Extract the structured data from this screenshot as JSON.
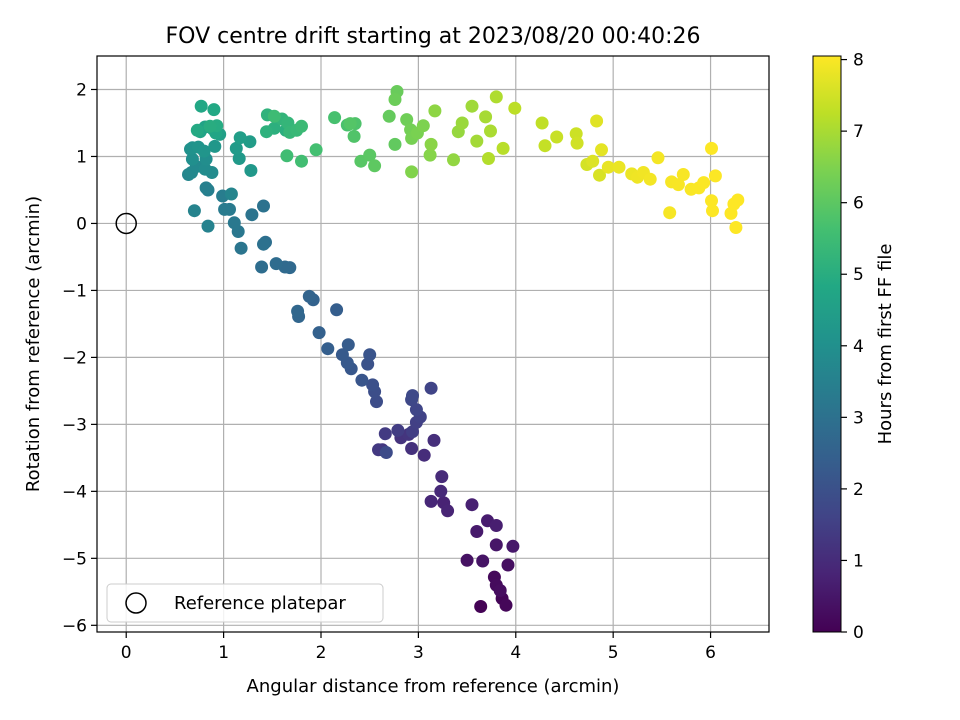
{
  "chart_data": {
    "type": "scatter",
    "title": "FOV centre drift starting at 2023/08/20 00:40:26",
    "xlabel": "Angular distance from reference (arcmin)",
    "ylabel": "Rotation from reference (arcmin)",
    "xlim": [
      -0.3,
      6.6
    ],
    "ylim": [
      -6.1,
      2.5
    ],
    "xticks": [
      0,
      1,
      2,
      3,
      4,
      5,
      6
    ],
    "yticks": [
      -6,
      -5,
      -4,
      -3,
      -2,
      -1,
      0,
      1,
      2
    ],
    "grid": true,
    "colormap": "viridis",
    "colorbar": {
      "label": "Hours from first FF file",
      "min": 0,
      "max": 8.05,
      "ticks": [
        0,
        1,
        2,
        3,
        4,
        5,
        6,
        7,
        8
      ]
    },
    "legend": {
      "position": "lower-left",
      "entries": [
        "Reference platepar"
      ]
    },
    "reference_point": {
      "x": 0,
      "y": 0
    },
    "points": [
      [
        3.64,
        -5.72,
        0.03
      ],
      [
        3.86,
        -5.6,
        0.08
      ],
      [
        3.9,
        -5.7,
        0.13
      ],
      [
        3.78,
        -5.28,
        0.18
      ],
      [
        3.8,
        -5.4,
        0.23
      ],
      [
        3.84,
        -5.48,
        0.28
      ],
      [
        3.92,
        -5.1,
        0.33
      ],
      [
        3.5,
        -5.03,
        0.38
      ],
      [
        3.66,
        -5.04,
        0.43
      ],
      [
        3.8,
        -4.8,
        0.48
      ],
      [
        3.97,
        -4.82,
        0.53
      ],
      [
        3.6,
        -4.6,
        0.58
      ],
      [
        3.71,
        -4.44,
        0.63
      ],
      [
        3.8,
        -4.51,
        0.68
      ],
      [
        3.55,
        -4.2,
        0.73
      ],
      [
        3.26,
        -4.17,
        0.78
      ],
      [
        3.3,
        -4.29,
        0.83
      ],
      [
        3.13,
        -4.15,
        0.88
      ],
      [
        3.23,
        -4.0,
        0.93
      ],
      [
        3.24,
        -3.78,
        0.98
      ],
      [
        3.06,
        -3.46,
        1.03
      ],
      [
        3.16,
        -3.24,
        1.08
      ],
      [
        2.93,
        -3.36,
        1.13
      ],
      [
        2.82,
        -3.2,
        1.18
      ],
      [
        2.9,
        -3.15,
        1.23
      ],
      [
        2.63,
        -3.38,
        1.28
      ],
      [
        2.59,
        -3.38,
        1.33
      ],
      [
        2.66,
        -3.14,
        1.38
      ],
      [
        2.79,
        -3.09,
        1.43
      ],
      [
        2.94,
        -3.11,
        1.48
      ],
      [
        2.98,
        -2.97,
        1.53
      ],
      [
        3.02,
        -2.89,
        1.58
      ],
      [
        3.13,
        -2.46,
        1.63
      ],
      [
        2.98,
        -2.78,
        1.68
      ],
      [
        2.93,
        -2.63,
        1.73
      ],
      [
        2.94,
        -2.57,
        1.78
      ],
      [
        2.67,
        -3.42,
        1.83
      ],
      [
        2.57,
        -2.66,
        1.88
      ],
      [
        2.55,
        -2.51,
        1.93
      ],
      [
        2.53,
        -2.41,
        1.98
      ],
      [
        2.48,
        -2.1,
        2.03
      ],
      [
        2.5,
        -1.96,
        2.08
      ],
      [
        2.42,
        -2.34,
        2.13
      ],
      [
        2.31,
        -2.17,
        2.18
      ],
      [
        2.27,
        -2.08,
        2.23
      ],
      [
        2.22,
        -1.96,
        2.28
      ],
      [
        2.28,
        -1.81,
        2.33
      ],
      [
        2.16,
        -1.29,
        2.38
      ],
      [
        2.07,
        -1.87,
        2.43
      ],
      [
        1.98,
        -1.63,
        2.48
      ],
      [
        1.92,
        -1.14,
        2.53
      ],
      [
        1.88,
        -1.09,
        2.58
      ],
      [
        1.77,
        -1.39,
        2.63
      ],
      [
        1.76,
        -1.31,
        2.68
      ],
      [
        1.68,
        -0.66,
        2.73
      ],
      [
        1.63,
        -0.65,
        2.78
      ],
      [
        1.54,
        -0.6,
        2.83
      ],
      [
        1.39,
        -0.65,
        2.88
      ],
      [
        1.43,
        -0.28,
        2.93
      ],
      [
        1.41,
        -0.31,
        2.98
      ],
      [
        1.41,
        0.26,
        3.03
      ],
      [
        1.29,
        0.13,
        3.08
      ],
      [
        1.18,
        -0.37,
        3.13
      ],
      [
        1.15,
        -0.12,
        3.18
      ],
      [
        1.11,
        0.01,
        3.23
      ],
      [
        1.06,
        0.21,
        3.28
      ],
      [
        1.01,
        0.21,
        3.33
      ],
      [
        0.99,
        0.41,
        3.38
      ],
      [
        0.84,
        0.5,
        3.43
      ],
      [
        0.82,
        0.53,
        3.48
      ],
      [
        0.84,
        -0.04,
        3.53
      ],
      [
        0.7,
        0.19,
        3.58
      ],
      [
        1.08,
        0.44,
        3.63
      ],
      [
        0.64,
        0.73,
        3.68
      ],
      [
        0.67,
        0.76,
        3.73
      ],
      [
        0.72,
        0.85,
        3.78
      ],
      [
        0.88,
        0.76,
        3.83
      ],
      [
        0.81,
        0.81,
        3.88
      ],
      [
        0.82,
        0.96,
        3.93
      ],
      [
        0.68,
        0.96,
        3.98
      ],
      [
        0.66,
        1.11,
        4.03
      ],
      [
        0.68,
        1.13,
        4.08
      ],
      [
        0.74,
        1.14,
        4.13
      ],
      [
        0.8,
        1.08,
        4.18
      ],
      [
        0.91,
        1.15,
        4.23
      ],
      [
        1.28,
        0.79,
        4.28
      ],
      [
        1.16,
        0.97,
        4.33
      ],
      [
        1.13,
        1.12,
        4.38
      ],
      [
        1.27,
        1.22,
        4.43
      ],
      [
        1.17,
        1.28,
        4.48
      ],
      [
        0.96,
        1.33,
        4.53
      ],
      [
        0.89,
        1.41,
        4.58
      ],
      [
        0.81,
        1.44,
        4.63
      ],
      [
        0.76,
        1.37,
        4.68
      ],
      [
        0.92,
        1.35,
        4.73
      ],
      [
        0.77,
        1.75,
        4.78
      ],
      [
        0.9,
        1.7,
        4.83
      ],
      [
        0.73,
        1.39,
        4.88
      ],
      [
        0.93,
        1.46,
        4.93
      ],
      [
        0.86,
        1.45,
        4.98
      ],
      [
        1.64,
        1.39,
        5.03
      ],
      [
        1.52,
        1.42,
        5.08
      ],
      [
        1.44,
        1.37,
        5.13
      ],
      [
        1.45,
        1.62,
        5.18
      ],
      [
        1.6,
        1.56,
        5.23
      ],
      [
        1.66,
        1.5,
        5.28
      ],
      [
        1.68,
        1.36,
        5.33
      ],
      [
        1.75,
        1.39,
        5.38
      ],
      [
        1.8,
        1.45,
        5.43
      ],
      [
        1.52,
        1.6,
        5.48
      ],
      [
        1.65,
        1.01,
        5.53
      ],
      [
        1.8,
        0.93,
        5.58
      ],
      [
        1.95,
        1.1,
        5.63
      ],
      [
        2.14,
        1.58,
        5.68
      ],
      [
        2.27,
        1.47,
        5.73
      ],
      [
        2.35,
        1.49,
        5.78
      ],
      [
        2.34,
        1.3,
        5.83
      ],
      [
        2.3,
        1.49,
        5.88
      ],
      [
        2.41,
        0.93,
        5.93
      ],
      [
        2.5,
        1.02,
        5.98
      ],
      [
        2.55,
        0.86,
        6.03
      ],
      [
        2.76,
        1.18,
        6.08
      ],
      [
        2.7,
        1.6,
        6.13
      ],
      [
        2.78,
        1.97,
        6.18
      ],
      [
        2.76,
        1.85,
        6.23
      ],
      [
        2.88,
        1.55,
        6.28
      ],
      [
        2.92,
        1.4,
        6.33
      ],
      [
        2.93,
        1.27,
        6.38
      ],
      [
        2.99,
        1.35,
        6.43
      ],
      [
        3.05,
        1.46,
        6.48
      ],
      [
        2.93,
        0.77,
        6.53
      ],
      [
        3.12,
        1.02,
        6.58
      ],
      [
        3.13,
        1.18,
        6.63
      ],
      [
        3.17,
        1.68,
        6.68
      ],
      [
        3.36,
        0.95,
        6.73
      ],
      [
        3.41,
        1.37,
        6.78
      ],
      [
        3.45,
        1.5,
        6.83
      ],
      [
        3.55,
        1.75,
        6.88
      ],
      [
        3.6,
        1.23,
        6.93
      ],
      [
        3.69,
        1.59,
        6.98
      ],
      [
        3.74,
        1.38,
        7.03
      ],
      [
        3.8,
        1.89,
        7.08
      ],
      [
        3.72,
        0.97,
        7.13
      ],
      [
        3.87,
        1.12,
        7.18
      ],
      [
        3.99,
        1.72,
        7.23
      ],
      [
        4.27,
        1.5,
        7.28
      ],
      [
        4.3,
        1.16,
        7.33
      ],
      [
        4.42,
        1.29,
        7.38
      ],
      [
        4.62,
        1.34,
        7.43
      ],
      [
        4.63,
        1.2,
        7.48
      ],
      [
        4.73,
        0.88,
        7.53
      ],
      [
        4.86,
        0.72,
        7.58
      ],
      [
        4.79,
        0.93,
        7.63
      ],
      [
        4.83,
        1.53,
        7.68
      ],
      [
        4.88,
        1.1,
        7.73
      ],
      [
        4.95,
        0.84,
        7.78
      ],
      [
        5.06,
        0.84,
        7.81
      ],
      [
        5.19,
        0.74,
        7.84
      ],
      [
        5.25,
        0.69,
        7.87
      ],
      [
        5.31,
        0.76,
        7.9
      ],
      [
        5.38,
        0.66,
        7.92
      ],
      [
        5.46,
        0.98,
        7.94
      ],
      [
        5.58,
        0.16,
        7.96
      ],
      [
        5.6,
        0.62,
        7.97
      ],
      [
        5.67,
        0.58,
        7.98
      ],
      [
        5.72,
        0.73,
        7.99
      ],
      [
        5.8,
        0.51,
        8.0
      ],
      [
        5.88,
        0.53,
        8.01
      ],
      [
        5.93,
        0.61,
        8.02
      ],
      [
        6.01,
        0.34,
        8.03
      ],
      [
        6.01,
        1.12,
        8.03
      ],
      [
        6.02,
        0.19,
        8.04
      ],
      [
        6.05,
        0.71,
        8.04
      ],
      [
        6.21,
        0.15,
        8.05
      ],
      [
        6.24,
        0.29,
        8.05
      ],
      [
        6.26,
        -0.06,
        8.05
      ],
      [
        6.28,
        0.35,
        8.05
      ]
    ]
  }
}
